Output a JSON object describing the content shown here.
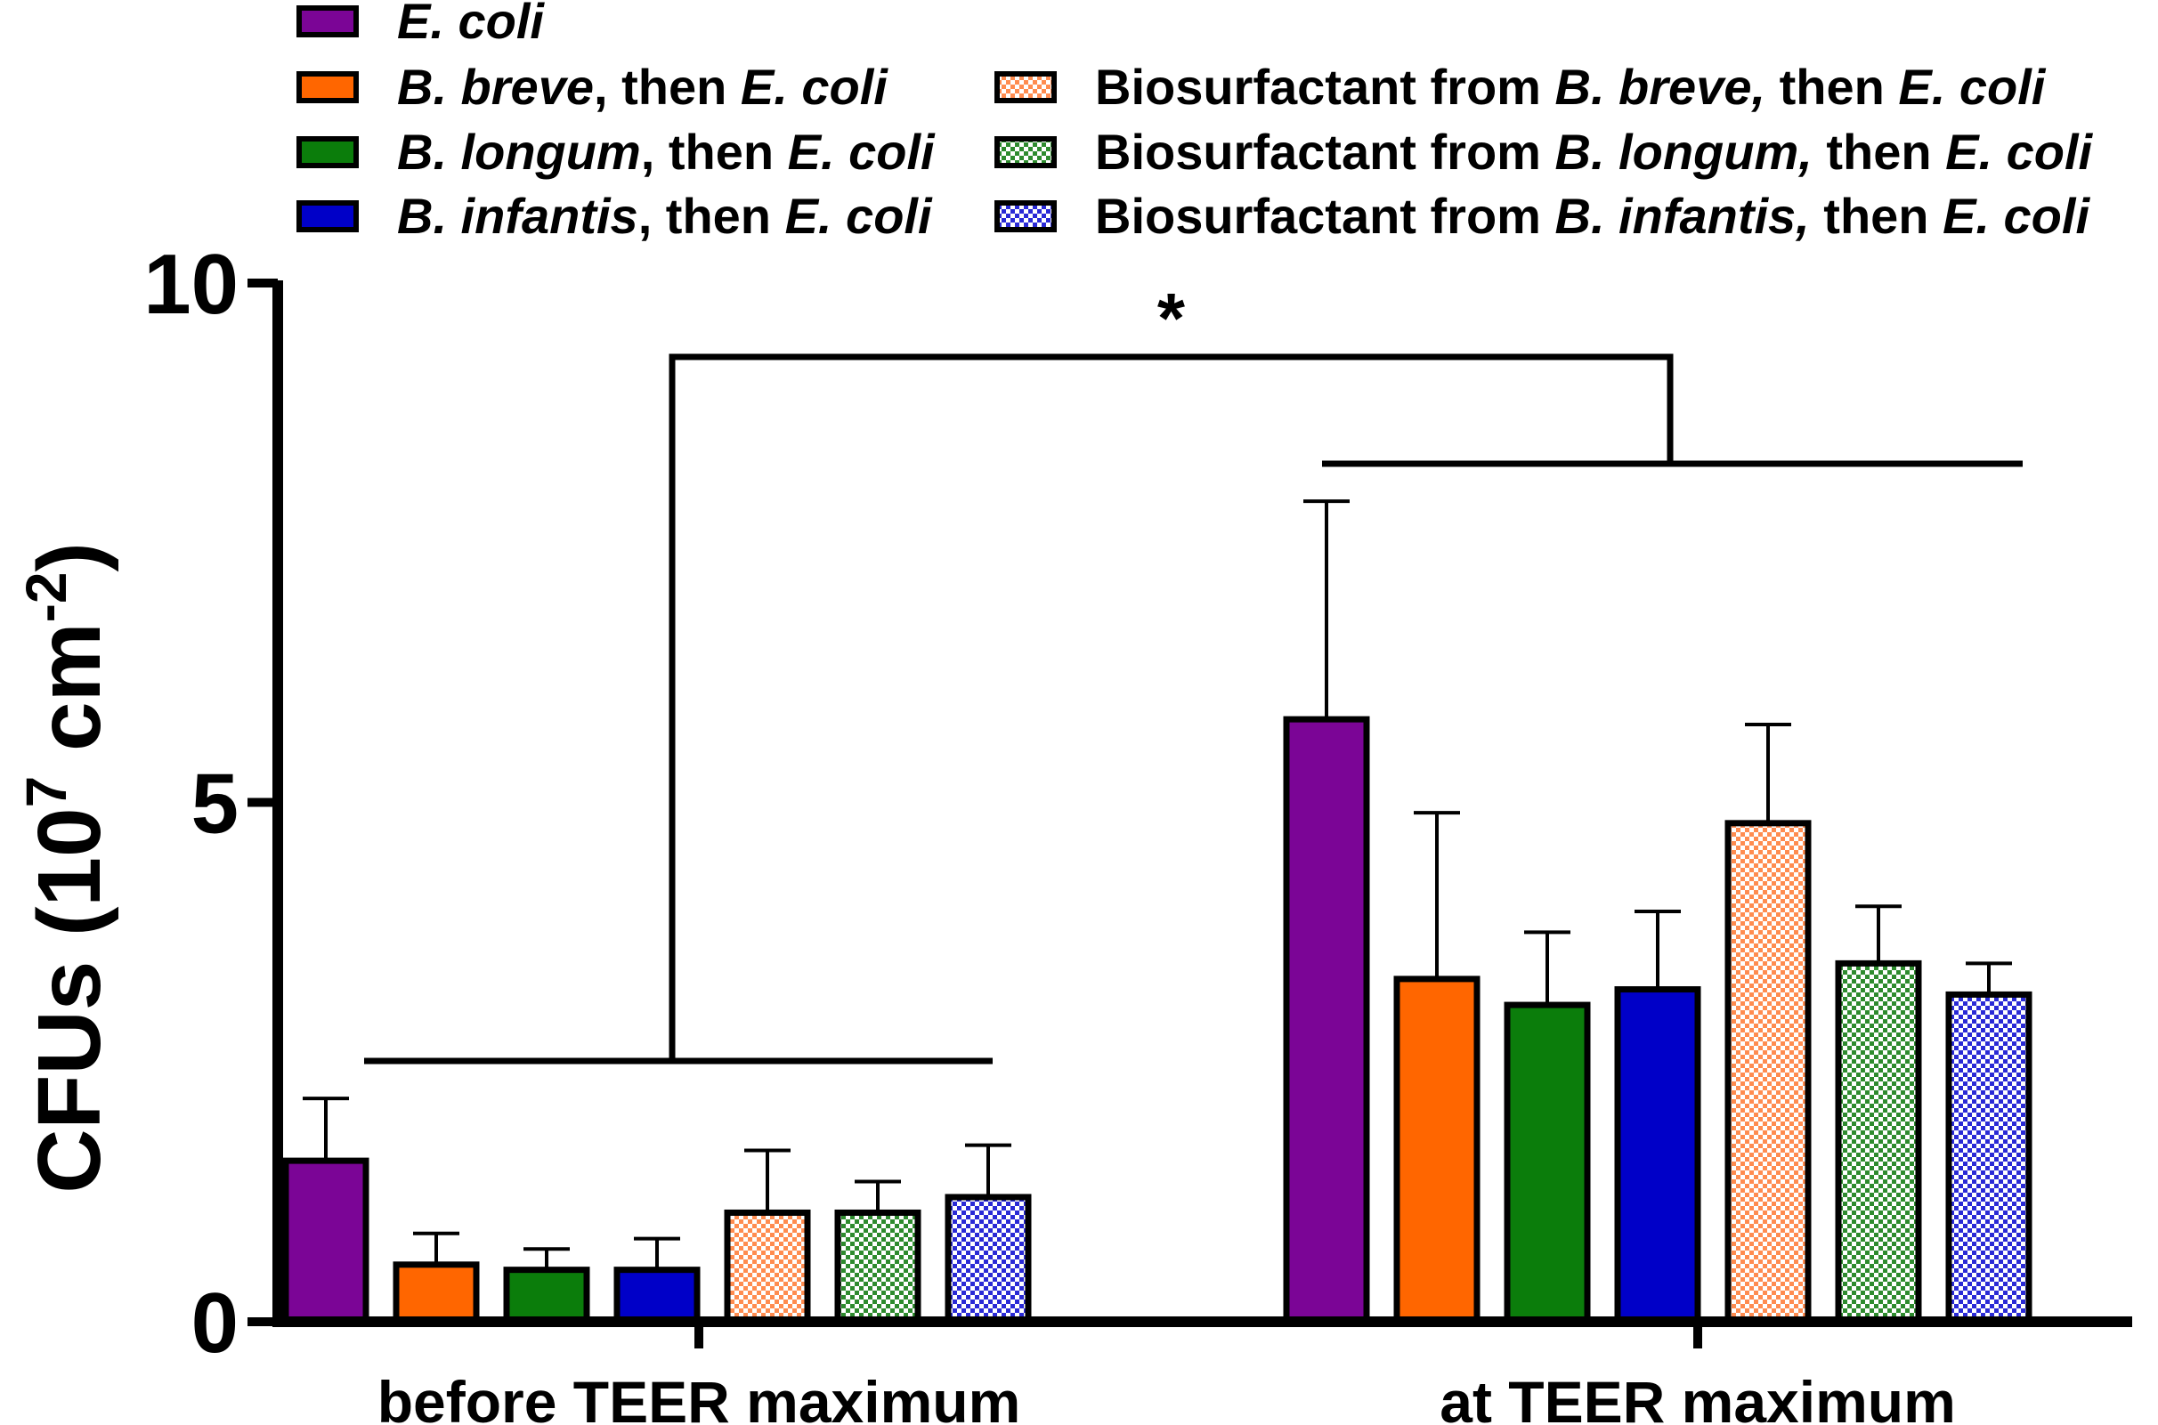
{
  "chart_data": {
    "type": "bar",
    "title": "",
    "xlabel": "",
    "ylabel": "CFUs (10⁷ cm⁻²)",
    "ylabel_parts": {
      "prefix": "CFUs (10",
      "exp1": "7",
      "mid": " cm",
      "exp2": "-2",
      "suffix": ")"
    },
    "ylim": [
      0,
      10
    ],
    "yticks": [
      "0",
      "5",
      "10"
    ],
    "categories": [
      "before TEER maximum",
      "at TEER maximum"
    ],
    "significance": {
      "label": "*",
      "between": [
        "before TEER maximum",
        "at TEER maximum"
      ]
    },
    "series": [
      {
        "id": "ecoli",
        "name": [
          {
            "t": "E. coli",
            "i": true
          }
        ],
        "values": [
          1.55,
          5.8
        ],
        "errors": [
          0.6,
          2.1
        ],
        "color": "#7b0596",
        "pattern": "solid"
      },
      {
        "id": "breve",
        "name": [
          {
            "t": "B. breve",
            "i": true
          },
          {
            "t": ", then ",
            "i": false
          },
          {
            "t": "E. coli",
            "i": true
          }
        ],
        "values": [
          0.55,
          3.3
        ],
        "errors": [
          0.3,
          1.6
        ],
        "color": "#ff6600",
        "pattern": "solid"
      },
      {
        "id": "longum",
        "name": [
          {
            "t": "B. longum",
            "i": true
          },
          {
            "t": ", then ",
            "i": false
          },
          {
            "t": "E. coli",
            "i": true
          }
        ],
        "values": [
          0.5,
          3.05
        ],
        "errors": [
          0.2,
          0.7
        ],
        "color": "#0b7d0b",
        "pattern": "solid"
      },
      {
        "id": "infantis",
        "name": [
          {
            "t": "B. infantis",
            "i": true
          },
          {
            "t": ", then ",
            "i": false
          },
          {
            "t": "E. coli",
            "i": true
          }
        ],
        "values": [
          0.5,
          3.2
        ],
        "errors": [
          0.3,
          0.75
        ],
        "color": "#0000c8",
        "pattern": "solid"
      },
      {
        "id": "bs_breve",
        "name": [
          {
            "t": "Biosurfactant from ",
            "i": false
          },
          {
            "t": "B. breve,",
            "i": true
          },
          {
            "t": " then ",
            "i": false
          },
          {
            "t": "E. coli",
            "i": true
          }
        ],
        "values": [
          1.05,
          4.8
        ],
        "errors": [
          0.6,
          0.95
        ],
        "color": "#ff8c50",
        "pattern": "checker"
      },
      {
        "id": "bs_longum",
        "name": [
          {
            "t": "Biosurfactant from ",
            "i": false
          },
          {
            "t": "B. longum,",
            "i": true
          },
          {
            "t": " then ",
            "i": false
          },
          {
            "t": "E. coli",
            "i": true
          }
        ],
        "values": [
          1.05,
          3.45
        ],
        "errors": [
          0.3,
          0.55
        ],
        "color": "#2e8b2e",
        "pattern": "checker"
      },
      {
        "id": "bs_infantis",
        "name": [
          {
            "t": "Biosurfactant from ",
            "i": false
          },
          {
            "t": "B. infantis,",
            "i": true
          },
          {
            "t": " then ",
            "i": false
          },
          {
            "t": "E. coli",
            "i": true
          }
        ],
        "values": [
          1.2,
          3.15
        ],
        "errors": [
          0.5,
          0.3
        ],
        "color": "#2a2ad6",
        "pattern": "checker"
      }
    ]
  }
}
